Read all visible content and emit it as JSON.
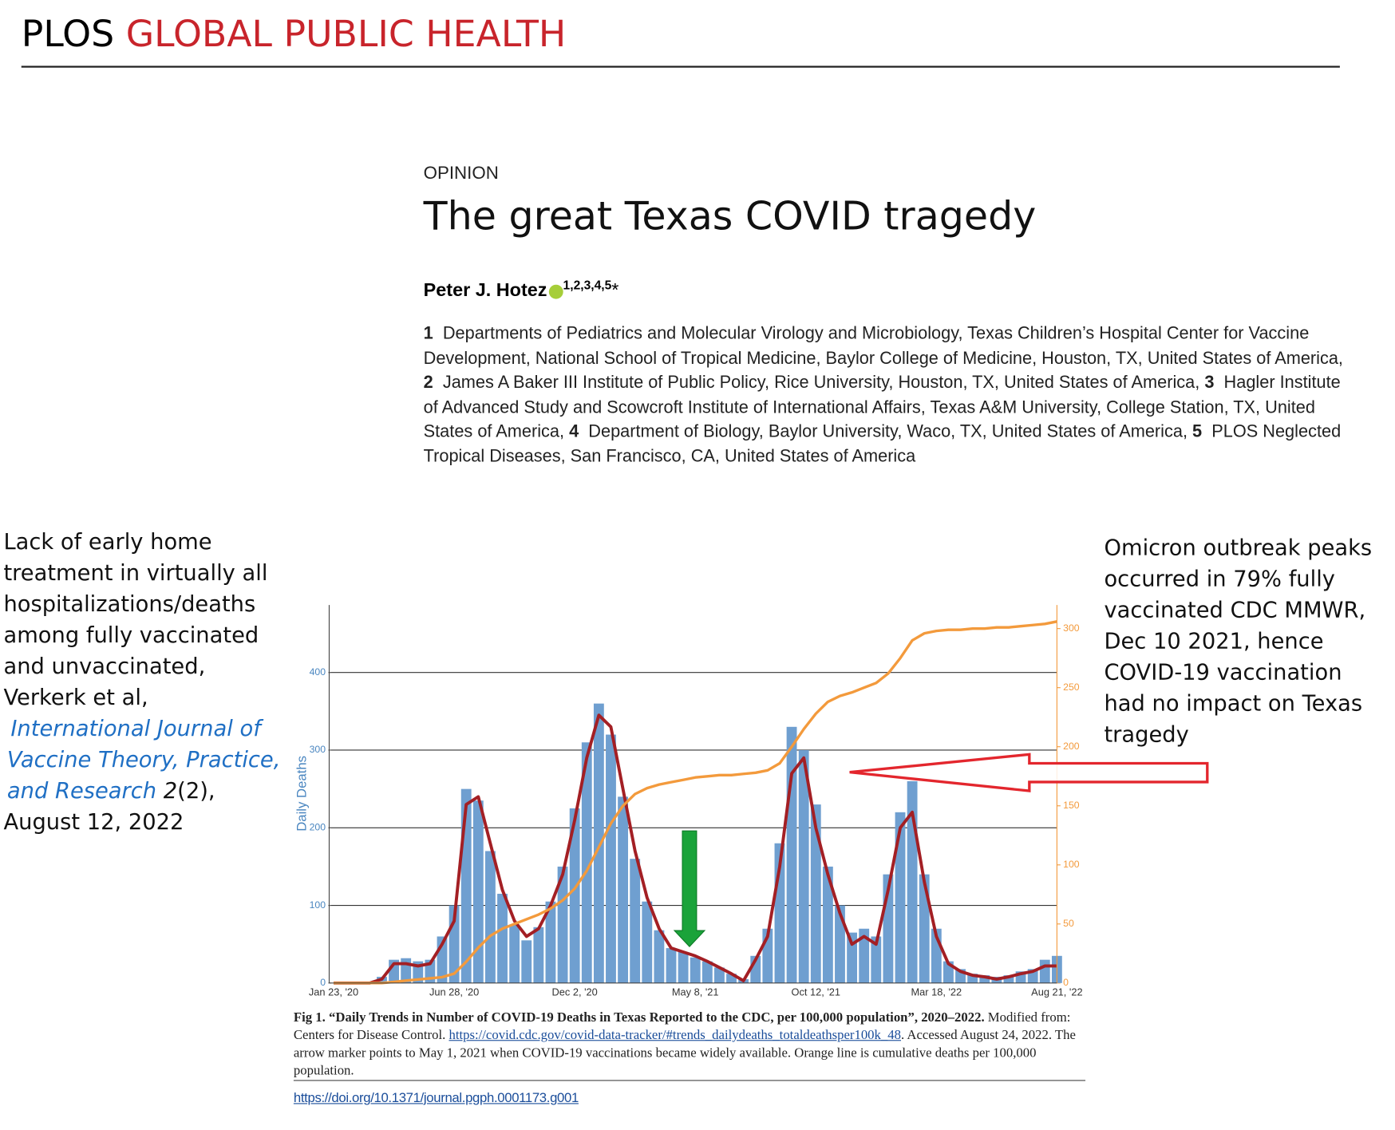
{
  "header": {
    "brand": "PLOS",
    "journal": "GLOBAL PUBLIC HEALTH"
  },
  "article": {
    "type": "OPINION",
    "title": "The great Texas COVID tragedy",
    "author": "Peter J. Hotez",
    "author_affiliations": "1,2,3,4,5",
    "author_mark": "*",
    "affiliations": [
      {
        "number": "1",
        "text": "Departments of Pediatrics and Molecular Virology and Microbiology, Texas Children’s Hospital Center for Vaccine Development, National School of Tropical Medicine, Baylor College of Medicine, Houston, TX, United States of America,"
      },
      {
        "number": "2",
        "text": "James A Baker III Institute of Public Policy, Rice University, Houston, TX, United States of America,"
      },
      {
        "number": "3",
        "text": "Hagler Institute of Advanced Study and Scowcroft Institute of International Affairs, Texas A&M University, College Station, TX, United States of America,"
      },
      {
        "number": "4",
        "text": "Department of Biology, Baylor University, Waco, TX, United States of America,"
      },
      {
        "number": "5",
        "text": "PLOS Neglected Tropical Diseases, San Francisco, CA, United States of America"
      }
    ]
  },
  "left_note": {
    "lines": [
      "Lack of early home",
      "treatment in virtually all",
      "hospitalizations/deaths",
      "among fully vaccinated",
      "and unvaccinated,",
      "Verkerk et al,"
    ],
    "journal_lines": [
      "International Journal of",
      "Vaccine Theory, Practice,",
      "and Research"
    ],
    "volume": "2",
    "issue": "(2),",
    "date": "August 12, 2022"
  },
  "right_note": {
    "lines": [
      "Omicron outbreak peaks",
      "occurred in 79% fully",
      "vaccinated CDC MMWR,",
      "Dec 10 2021, hence",
      "COVID-19 vaccination",
      "had no impact on Texas",
      "tragedy"
    ]
  },
  "chart_data": {
    "type": "bar",
    "y_label": "Daily Deaths",
    "categories": [
      "Jan 23, '20",
      null,
      null,
      null,
      null,
      null,
      null,
      null,
      null,
      null,
      "Jun 28, '20",
      null,
      null,
      null,
      null,
      null,
      null,
      null,
      null,
      null,
      "Dec 2, '20",
      null,
      null,
      null,
      null,
      null,
      null,
      null,
      null,
      null,
      "May 8, '21",
      null,
      null,
      null,
      null,
      null,
      null,
      null,
      null,
      null,
      "Oct 12, '21",
      null,
      null,
      null,
      null,
      null,
      null,
      null,
      null,
      null,
      "Mar 18, '22",
      null,
      null,
      null,
      null,
      null,
      null,
      null,
      null,
      null,
      "Aug 21, '22"
    ],
    "series": [
      {
        "type": "bar",
        "color": "#6f9fd0",
        "values": [
          0,
          0,
          0,
          0,
          8,
          30,
          32,
          28,
          30,
          60,
          100,
          250,
          235,
          170,
          115,
          75,
          55,
          72,
          105,
          150,
          225,
          310,
          360,
          320,
          240,
          160,
          105,
          68,
          45,
          40,
          33,
          28,
          20,
          12,
          5,
          35,
          70,
          180,
          330,
          300,
          230,
          150,
          100,
          65,
          70,
          60,
          140,
          220,
          260,
          140,
          70,
          28,
          18,
          12,
          10,
          8,
          10,
          15,
          18,
          30,
          35
        ]
      },
      {
        "type": "line",
        "color": "#a31f24",
        "values": [
          0,
          0,
          0,
          0,
          5,
          25,
          25,
          22,
          25,
          50,
          80,
          230,
          240,
          180,
          120,
          80,
          60,
          70,
          100,
          140,
          210,
          290,
          345,
          330,
          250,
          170,
          110,
          70,
          45,
          40,
          35,
          28,
          20,
          12,
          3,
          30,
          60,
          150,
          270,
          290,
          200,
          140,
          90,
          50,
          60,
          50,
          120,
          200,
          220,
          130,
          60,
          25,
          15,
          10,
          8,
          5,
          8,
          12,
          15,
          22,
          22
        ]
      },
      {
        "type": "line",
        "color": "#f39a3c",
        "axis": "y2",
        "values": [
          0,
          0,
          0,
          0,
          0,
          1,
          2,
          3,
          4,
          5,
          8,
          18,
          30,
          40,
          46,
          50,
          54,
          58,
          63,
          70,
          80,
          95,
          115,
          135,
          150,
          160,
          165,
          168,
          170,
          172,
          174,
          175,
          176,
          176,
          177,
          178,
          180,
          186,
          200,
          215,
          228,
          238,
          243,
          246,
          250,
          254,
          262,
          275,
          290,
          296,
          298,
          299,
          299,
          300,
          300,
          301,
          301,
          302,
          303,
          304,
          306
        ]
      }
    ],
    "ylim": [
      0,
      487
    ],
    "yticks": [
      0,
      100,
      200,
      300,
      400
    ],
    "y2lim": [
      0,
      320
    ],
    "y2ticks": [
      0,
      50,
      100,
      150,
      200,
      250,
      300
    ],
    "grid": true
  },
  "caption": {
    "label": "Fig 1.",
    "title": "“Daily Trends in Number of COVID-19 Deaths in Texas Reported to the CDC, per 100,000 population”, 2020–2022.",
    "source": "Modified from: Centers for Disease Control.",
    "url": "https://covid.cdc.gov/covid-data-tracker/#trends_dailydeaths_totaldeathsper100k_48",
    "rest": ". Accessed August 24, 2022. The arrow marker points to May 1, 2021 when COVID-19 vaccinations became widely available. Orange line is cumulative deaths per 100,000 population.",
    "doi": "https://doi.org/10.1371/journal.pgph.0001173.g001"
  }
}
